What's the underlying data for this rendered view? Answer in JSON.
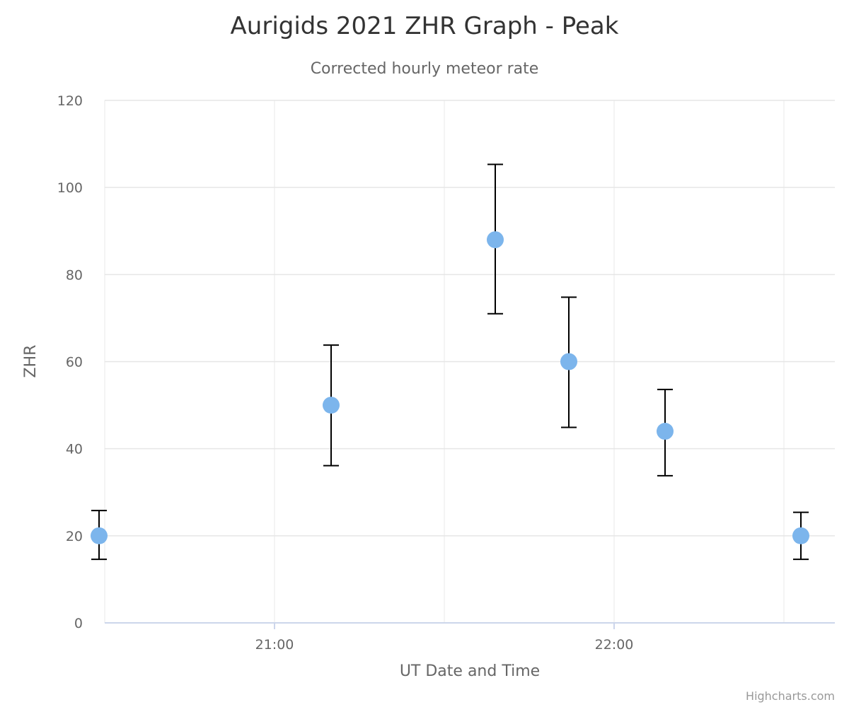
{
  "chart_data": {
    "type": "scatter",
    "title": "Aurigids 2021 ZHR Graph - Peak",
    "subtitle": "Corrected hourly meteor rate",
    "xlabel": "UT Date and Time",
    "ylabel": "ZHR",
    "ylim": [
      0,
      120
    ],
    "yticks": [
      0,
      20,
      40,
      60,
      80,
      100,
      120
    ],
    "xlim": [
      "20:30",
      "22:39"
    ],
    "xticks": [
      "21:00",
      "22:00"
    ],
    "minor_gridlines_x": [
      "20:30",
      "21:00",
      "21:30",
      "22:00",
      "22:30"
    ],
    "grid": true,
    "legend": "none",
    "marker_color": "#7cb5ec",
    "errorbar_color": "#000000",
    "points": [
      {
        "x": "20:29",
        "y": 20,
        "low": 14.6,
        "high": 25.8
      },
      {
        "x": "21:10",
        "y": 50,
        "low": 36.1,
        "high": 63.8
      },
      {
        "x": "21:39",
        "y": 88,
        "low": 71.0,
        "high": 105.3
      },
      {
        "x": "21:52",
        "y": 60,
        "low": 44.9,
        "high": 74.8
      },
      {
        "x": "22:09",
        "y": 44,
        "low": 33.8,
        "high": 53.6
      },
      {
        "x": "22:33",
        "y": 20,
        "low": 14.6,
        "high": 25.4
      }
    ]
  },
  "credit": "Highcharts.com"
}
